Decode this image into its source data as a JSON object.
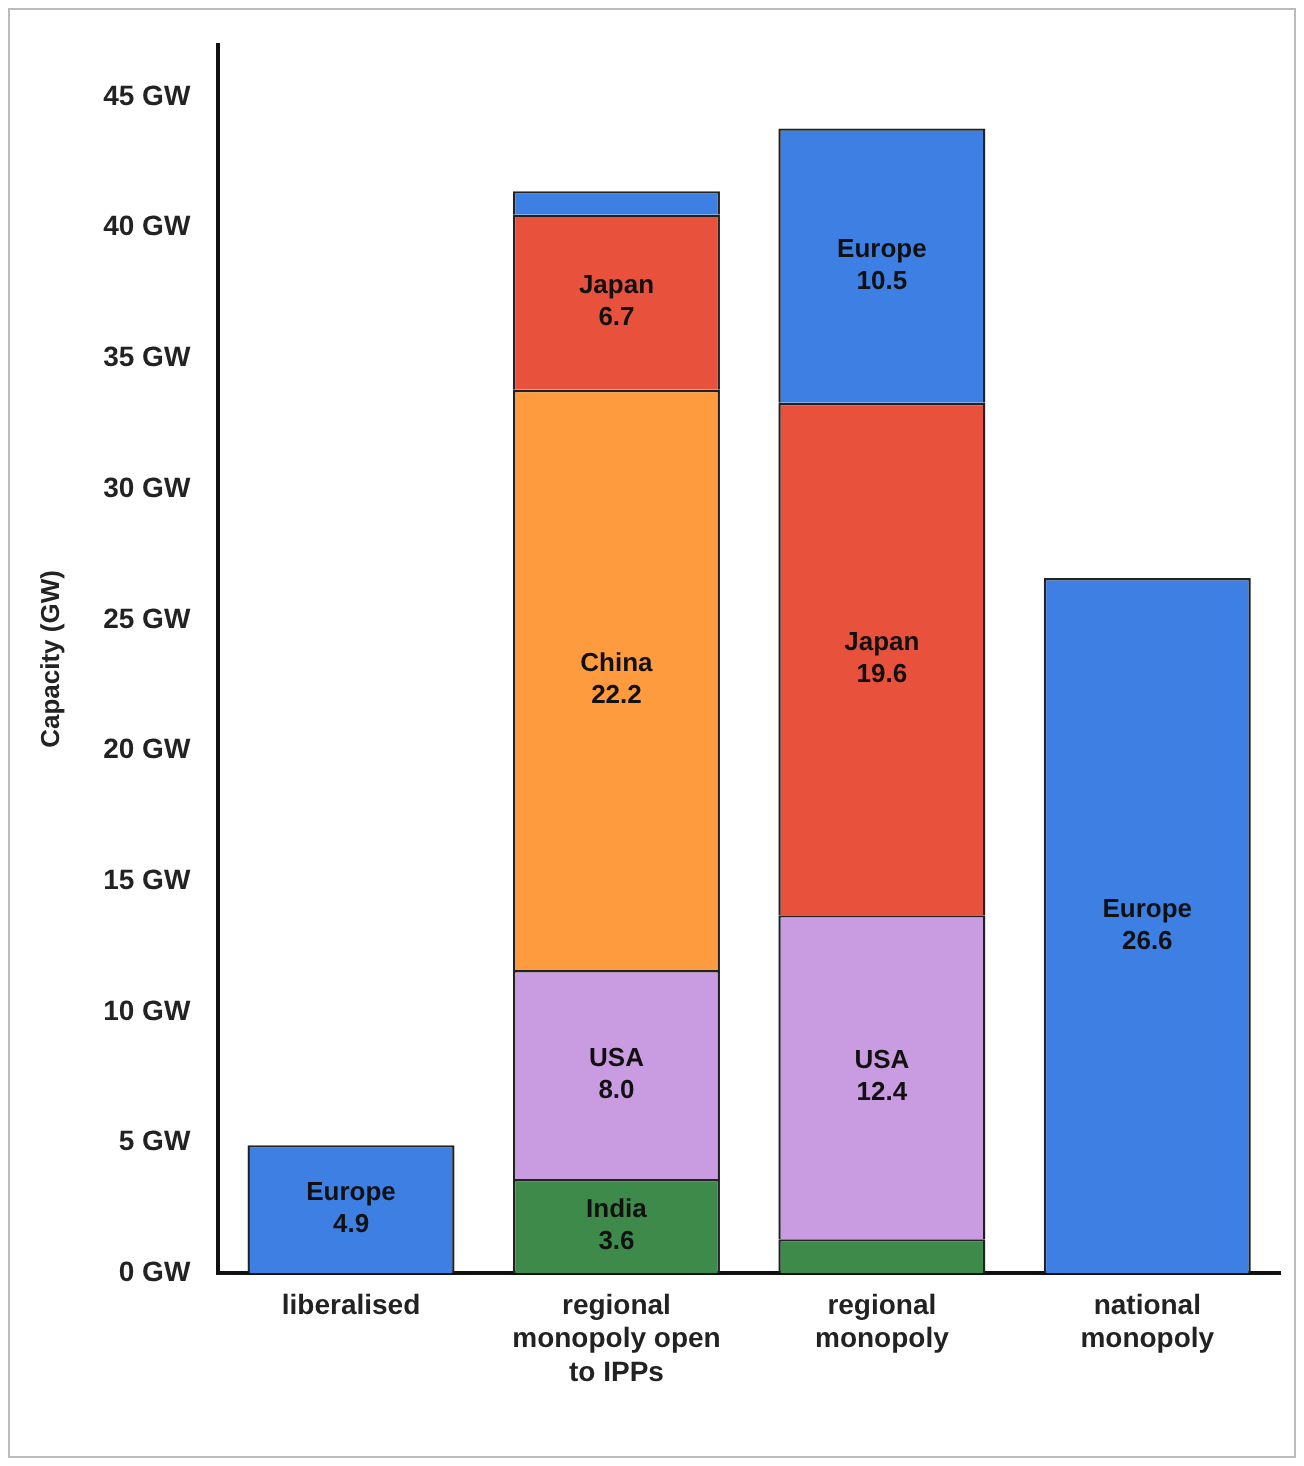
{
  "chart_data": {
    "type": "bar",
    "stacked": true,
    "ylabel": "Capacity (GW)",
    "categories": [
      "liberalised",
      "regional monopoly open to IPPs",
      "regional monopoly",
      "national monopoly"
    ],
    "series": [
      {
        "name": "India",
        "color": "#3d8a4a",
        "values": [
          null,
          3.6,
          1.3,
          null
        ],
        "value_labels": [
          null,
          "3.6",
          null,
          null
        ]
      },
      {
        "name": "USA",
        "color": "#c99be0",
        "values": [
          null,
          8.0,
          12.4,
          null
        ],
        "value_labels": [
          null,
          "8.0",
          "12.4",
          null
        ]
      },
      {
        "name": "China",
        "color": "#fd9b3e",
        "values": [
          null,
          22.2,
          null,
          null
        ],
        "value_labels": [
          null,
          "22.2",
          null,
          null
        ]
      },
      {
        "name": "Japan",
        "color": "#e8523d",
        "values": [
          null,
          6.7,
          19.6,
          null
        ],
        "value_labels": [
          null,
          "6.7",
          "19.6",
          null
        ]
      },
      {
        "name": "Europe",
        "color": "#3d7fe3",
        "values": [
          4.9,
          0.9,
          10.5,
          26.6
        ],
        "value_labels": [
          "4.9",
          null,
          "10.5",
          "26.6"
        ]
      }
    ],
    "ylim": [
      0,
      47
    ],
    "yticks": [
      {
        "value": 0,
        "label": "0 GW"
      },
      {
        "value": 5,
        "label": "5 GW"
      },
      {
        "value": 10,
        "label": "10 GW"
      },
      {
        "value": 15,
        "label": "15 GW"
      },
      {
        "value": 20,
        "label": "20 GW"
      },
      {
        "value": 25,
        "label": "25 GW"
      },
      {
        "value": 30,
        "label": "30 GW"
      },
      {
        "value": 35,
        "label": "35 GW"
      },
      {
        "value": 40,
        "label": "40 GW"
      },
      {
        "value": 45,
        "label": "45 GW"
      }
    ],
    "grid": false,
    "legend": false
  }
}
